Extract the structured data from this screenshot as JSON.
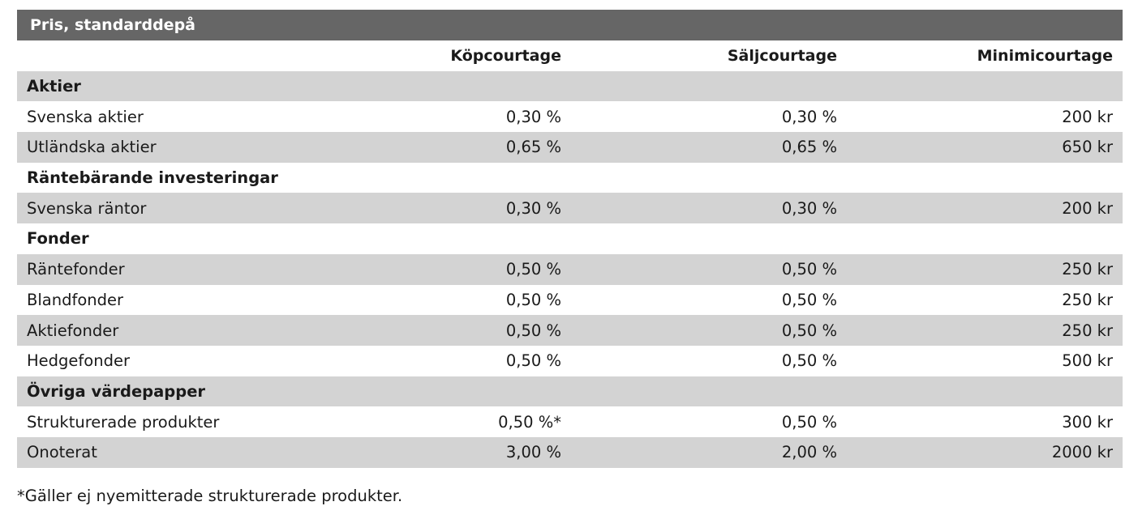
{
  "table": {
    "title": "Pris, standarddepå",
    "columns": [
      "Köpcourtage",
      "Säljcourtage",
      "Minimicourtage"
    ],
    "sections": [
      {
        "name": "Aktier",
        "rows": [
          {
            "label": "Svenska aktier",
            "buy": "0,30 %",
            "sell": "0,30 %",
            "min": "200 kr"
          },
          {
            "label": "Utländska aktier",
            "buy": "0,65 %",
            "sell": "0,65 %",
            "min": "650 kr"
          }
        ]
      },
      {
        "name": "Räntebärande investeringar",
        "rows": [
          {
            "label": "Svenska räntor",
            "buy": "0,30 %",
            "sell": "0,30 %",
            "min": "200 kr"
          }
        ]
      },
      {
        "name": "Fonder",
        "rows": [
          {
            "label": "Räntefonder",
            "buy": "0,50 %",
            "sell": "0,50 %",
            "min": "250 kr"
          },
          {
            "label": "Blandfonder",
            "buy": "0,50 %",
            "sell": "0,50 %",
            "min": "250 kr"
          },
          {
            "label": "Aktiefonder",
            "buy": "0,50 %",
            "sell": "0,50 %",
            "min": "250 kr"
          },
          {
            "label": "Hedgefonder",
            "buy": "0,50 %",
            "sell": "0,50 %",
            "min": "500 kr"
          }
        ]
      },
      {
        "name": "Övriga värdepapper",
        "rows": [
          {
            "label": "Strukturerade produkter",
            "buy": "0,50 %*",
            "sell": "0,50 %",
            "min": "300 kr"
          },
          {
            "label": "Onoterat",
            "buy": "3,00 %",
            "sell": "2,00 %",
            "min": "2000 kr"
          }
        ]
      }
    ]
  },
  "footnote": "*Gäller ej nyemitterade strukturerade produkter.",
  "colors": {
    "title_bar": "#666666",
    "shaded_row": "#d3d3d3",
    "text": "#1a1a1a"
  }
}
